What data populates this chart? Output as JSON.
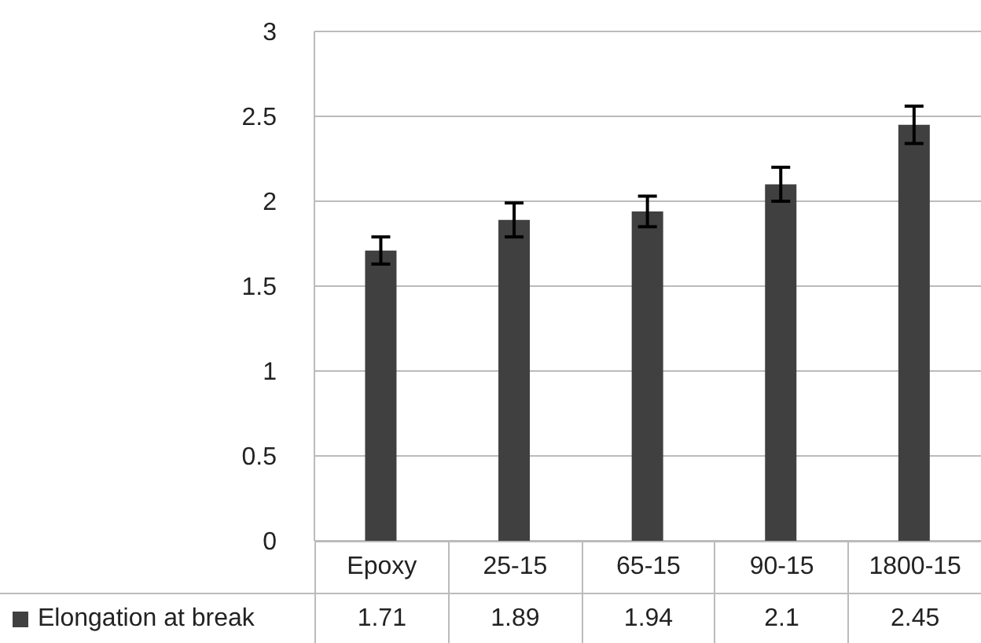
{
  "chart_data": {
    "type": "bar",
    "categories": [
      "Epoxy",
      "25-15",
      "65-15",
      "90-15",
      "1800-15"
    ],
    "series": [
      {
        "name": "Elongation at break",
        "color": "#404040",
        "values": [
          1.71,
          1.89,
          1.94,
          2.1,
          2.45
        ],
        "errors": [
          0.08,
          0.1,
          0.09,
          0.1,
          0.11
        ]
      }
    ],
    "ylim": [
      0,
      3
    ],
    "yticks": [
      0,
      0.5,
      1,
      1.5,
      2,
      2.5,
      3
    ],
    "grid": "y",
    "legend": "bottom",
    "data_labels": true
  }
}
